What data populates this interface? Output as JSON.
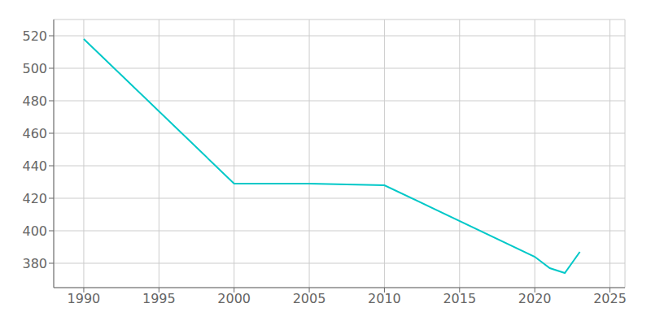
{
  "chart_data": {
    "type": "line",
    "x": [
      1990,
      2000,
      2005,
      2010,
      2020,
      2021,
      2022,
      2023
    ],
    "values": [
      518,
      429,
      429,
      428,
      384,
      377,
      374,
      387
    ],
    "color": "#00C8C8",
    "xlim": [
      1988,
      2026
    ],
    "ylim": [
      365,
      530
    ],
    "xticks": [
      1990,
      1995,
      2000,
      2005,
      2010,
      2015,
      2020,
      2025
    ],
    "yticks": [
      380,
      400,
      420,
      440,
      460,
      480,
      500,
      520
    ],
    "grid": true
  }
}
